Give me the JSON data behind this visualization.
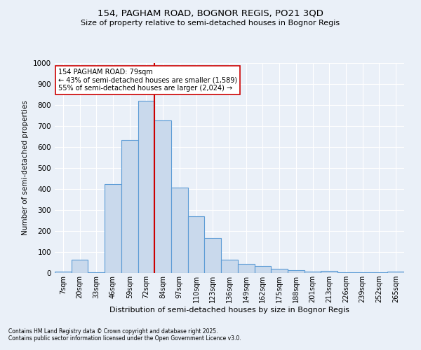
{
  "title1": "154, PAGHAM ROAD, BOGNOR REGIS, PO21 3QD",
  "title2": "Size of property relative to semi-detached houses in Bognor Regis",
  "xlabel": "Distribution of semi-detached houses by size in Bognor Regis",
  "ylabel": "Number of semi-detached properties",
  "footer1": "Contains HM Land Registry data © Crown copyright and database right 2025.",
  "footer2": "Contains public sector information licensed under the Open Government Licence v3.0.",
  "bins": [
    "7sqm",
    "20sqm",
    "33sqm",
    "46sqm",
    "59sqm",
    "72sqm",
    "84sqm",
    "97sqm",
    "110sqm",
    "123sqm",
    "136sqm",
    "149sqm",
    "162sqm",
    "175sqm",
    "188sqm",
    "201sqm",
    "213sqm",
    "226sqm",
    "239sqm",
    "252sqm",
    "265sqm"
  ],
  "values": [
    8,
    63,
    5,
    422,
    634,
    820,
    726,
    408,
    270,
    168,
    63,
    42,
    35,
    20,
    15,
    8,
    10,
    5,
    5,
    5,
    8
  ],
  "bar_color": "#c9d9ec",
  "bar_edge_color": "#5b9bd5",
  "bg_color": "#eaf0f8",
  "grid_color": "#ffffff",
  "vline_x": 5.5,
  "vline_color": "#cc0000",
  "annotation_text": "154 PAGHAM ROAD: 79sqm\n← 43% of semi-detached houses are smaller (1,589)\n55% of semi-detached houses are larger (2,024) →",
  "annotation_box_color": "#ffffff",
  "annotation_box_edge": "#cc0000",
  "ylim": [
    0,
    1000
  ],
  "yticks": [
    0,
    100,
    200,
    300,
    400,
    500,
    600,
    700,
    800,
    900,
    1000
  ]
}
